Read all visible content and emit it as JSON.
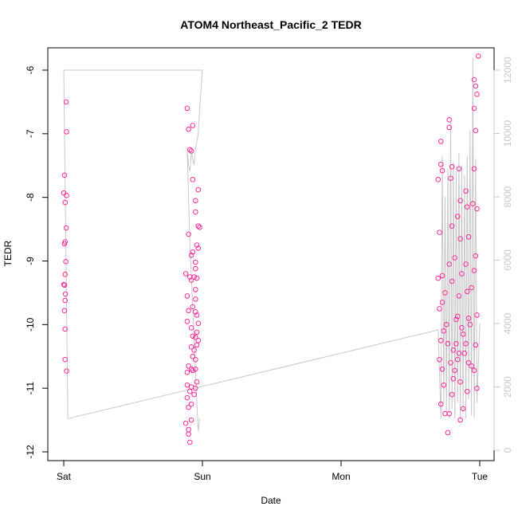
{
  "chart_data": {
    "type": "scatter",
    "title": "ATOM4 Northeast_Pacific_2 TEDR",
    "xlabel": "Date",
    "ylabel": "TEDR",
    "x_tick_labels": [
      "Sat",
      "Sun",
      "Mon",
      "Tue"
    ],
    "x_tick_values": [
      0,
      1,
      2,
      3
    ],
    "xlim": [
      0,
      3
    ],
    "ylim": [
      -12,
      -5.8
    ],
    "y_ticks": [
      -12,
      -11,
      -10,
      -9,
      -8,
      -7,
      -6
    ],
    "y2lim": [
      0,
      12000
    ],
    "y2_ticks": [
      0,
      2000,
      4000,
      6000,
      8000,
      10000,
      12000
    ],
    "grid": false,
    "colors": {
      "points": "#ff1493",
      "line": "#c8c8c8",
      "axis": "#000000",
      "right_axis": "#c8c8c8"
    },
    "series": [
      {
        "role": "points",
        "axis": "left",
        "points": [
          [
            0.018,
            -6.5
          ],
          [
            0.02,
            -6.97
          ],
          [
            0.005,
            -7.65
          ],
          [
            0.0,
            -7.93
          ],
          [
            0.02,
            -7.97
          ],
          [
            0.01,
            -8.08
          ],
          [
            0.018,
            -8.48
          ],
          [
            0.01,
            -8.7
          ],
          [
            0.005,
            -8.73
          ],
          [
            0.015,
            -9.01
          ],
          [
            0.01,
            -9.21
          ],
          [
            0.005,
            -9.38
          ],
          [
            0.0,
            -9.37
          ],
          [
            0.012,
            -9.52
          ],
          [
            0.01,
            -9.62
          ],
          [
            0.005,
            -9.78
          ],
          [
            0.01,
            -10.07
          ],
          [
            0.01,
            -10.55
          ],
          [
            0.02,
            -10.73
          ],
          [
            0.89,
            -6.6
          ],
          [
            0.93,
            -6.87
          ],
          [
            0.9,
            -6.93
          ],
          [
            0.91,
            -7.25
          ],
          [
            0.92,
            -7.27
          ],
          [
            0.97,
            -7.88
          ],
          [
            0.93,
            -7.72
          ],
          [
            0.95,
            -8.05
          ],
          [
            0.95,
            -8.23
          ],
          [
            0.97,
            -8.45
          ],
          [
            0.98,
            -8.47
          ],
          [
            0.9,
            -8.58
          ],
          [
            0.96,
            -8.75
          ],
          [
            0.97,
            -8.8
          ],
          [
            0.93,
            -8.86
          ],
          [
            0.92,
            -8.91
          ],
          [
            0.95,
            -9.02
          ],
          [
            0.95,
            -9.12
          ],
          [
            0.88,
            -9.2
          ],
          [
            0.91,
            -9.25
          ],
          [
            0.94,
            -9.25
          ],
          [
            0.96,
            -9.27
          ],
          [
            0.92,
            -9.3
          ],
          [
            0.95,
            -9.45
          ],
          [
            0.89,
            -9.55
          ],
          [
            0.95,
            -9.6
          ],
          [
            0.93,
            -9.72
          ],
          [
            0.9,
            -9.78
          ],
          [
            0.95,
            -9.8
          ],
          [
            0.96,
            -9.85
          ],
          [
            0.89,
            -9.95
          ],
          [
            0.97,
            -9.98
          ],
          [
            0.92,
            -10.05
          ],
          [
            0.96,
            -10.12
          ],
          [
            0.93,
            -10.18
          ],
          [
            0.95,
            -10.2
          ],
          [
            0.97,
            -10.25
          ],
          [
            0.96,
            -10.32
          ],
          [
            0.92,
            -10.35
          ],
          [
            0.94,
            -10.4
          ],
          [
            0.93,
            -10.5
          ],
          [
            0.95,
            -10.55
          ],
          [
            0.9,
            -10.65
          ],
          [
            0.92,
            -10.7
          ],
          [
            0.95,
            -10.7
          ],
          [
            0.89,
            -10.75
          ],
          [
            0.93,
            -10.72
          ],
          [
            0.96,
            -10.9
          ],
          [
            0.89,
            -10.95
          ],
          [
            0.92,
            -10.98
          ],
          [
            0.95,
            -11.0
          ],
          [
            0.91,
            -11.05
          ],
          [
            0.94,
            -11.1
          ],
          [
            0.89,
            -11.15
          ],
          [
            0.92,
            -11.25
          ],
          [
            0.9,
            -11.3
          ],
          [
            0.92,
            -11.5
          ],
          [
            0.88,
            -11.55
          ],
          [
            0.9,
            -11.65
          ],
          [
            0.9,
            -11.72
          ],
          [
            0.91,
            -11.85
          ],
          [
            2.7,
            -7.72
          ],
          [
            2.71,
            -8.55
          ],
          [
            2.72,
            -7.48
          ],
          [
            2.73,
            -7.58
          ],
          [
            2.72,
            -7.12
          ],
          [
            2.7,
            -9.27
          ],
          [
            2.73,
            -9.23
          ],
          [
            2.71,
            -9.75
          ],
          [
            2.73,
            -9.65
          ],
          [
            2.72,
            -10.25
          ],
          [
            2.71,
            -10.55
          ],
          [
            2.73,
            -10.7
          ],
          [
            2.74,
            -10.95
          ],
          [
            2.75,
            -11.4
          ],
          [
            2.72,
            -11.25
          ],
          [
            2.78,
            -6.78
          ],
          [
            2.78,
            -6.9
          ],
          [
            2.8,
            -7.52
          ],
          [
            2.79,
            -7.7
          ],
          [
            2.8,
            -8.45
          ],
          [
            2.82,
            -8.95
          ],
          [
            2.78,
            -9.05
          ],
          [
            2.8,
            -9.32
          ],
          [
            2.83,
            -9.92
          ],
          [
            2.81,
            -10.4
          ],
          [
            2.82,
            -10.72
          ],
          [
            2.8,
            -11.1
          ],
          [
            2.78,
            -11.4
          ],
          [
            2.77,
            -11.7
          ],
          [
            2.85,
            -7.55
          ],
          [
            2.86,
            -8.05
          ],
          [
            2.84,
            -8.3
          ],
          [
            2.86,
            -8.65
          ],
          [
            2.87,
            -9.2
          ],
          [
            2.85,
            -9.55
          ],
          [
            2.84,
            -9.87
          ],
          [
            2.87,
            -10.05
          ],
          [
            2.85,
            -10.45
          ],
          [
            2.86,
            -10.9
          ],
          [
            2.88,
            -11.32
          ],
          [
            2.86,
            -11.5
          ],
          [
            2.9,
            -7.9
          ],
          [
            2.91,
            -8.15
          ],
          [
            2.92,
            -8.62
          ],
          [
            2.9,
            -9.05
          ],
          [
            2.91,
            -9.48
          ],
          [
            2.92,
            -9.9
          ],
          [
            2.9,
            -10.3
          ],
          [
            2.92,
            -10.6
          ],
          [
            2.91,
            -11.05
          ],
          [
            2.94,
            -9.42
          ],
          [
            2.96,
            -6.15
          ],
          [
            2.97,
            -6.25
          ],
          [
            2.96,
            -6.6
          ],
          [
            2.97,
            -6.95
          ],
          [
            2.96,
            -7.55
          ],
          [
            2.98,
            -8.18
          ],
          [
            2.97,
            -8.92
          ],
          [
            2.96,
            -9.15
          ],
          [
            2.98,
            -9.85
          ],
          [
            2.97,
            -10.32
          ],
          [
            2.96,
            -10.72
          ],
          [
            2.98,
            -11.0
          ],
          [
            2.99,
            -5.78
          ],
          [
            2.98,
            -6.38
          ],
          [
            2.95,
            -8.1
          ],
          [
            2.75,
            -9.5
          ],
          [
            2.76,
            -10.0
          ],
          [
            2.77,
            -10.3
          ],
          [
            2.74,
            -10.1
          ],
          [
            2.79,
            -10.6
          ],
          [
            2.81,
            -10.85
          ],
          [
            2.83,
            -10.3
          ],
          [
            2.84,
            -10.55
          ],
          [
            2.88,
            -10.15
          ],
          [
            2.89,
            -10.45
          ],
          [
            2.93,
            -10.0
          ],
          [
            2.94,
            -10.65
          ]
        ]
      },
      {
        "role": "line",
        "axis": "right",
        "points": [
          [
            0.0,
            12000
          ],
          [
            0.03,
            1000
          ],
          [
            2.7,
            3800
          ],
          [
            2.72,
            1000
          ],
          [
            2.73,
            9300
          ],
          [
            2.74,
            1500
          ],
          [
            2.75,
            8000
          ],
          [
            2.76,
            1200
          ],
          [
            2.77,
            8900
          ],
          [
            2.78,
            1000
          ],
          [
            2.79,
            10400
          ],
          [
            2.8,
            1300
          ],
          [
            2.81,
            9100
          ],
          [
            2.82,
            1000
          ],
          [
            2.83,
            8800
          ],
          [
            2.84,
            1500
          ],
          [
            2.85,
            9400
          ],
          [
            2.86,
            1000
          ],
          [
            2.87,
            9000
          ],
          [
            2.88,
            1200
          ],
          [
            2.89,
            8700
          ],
          [
            2.9,
            1000
          ],
          [
            2.91,
            9300
          ],
          [
            2.92,
            1600
          ],
          [
            2.93,
            10100
          ],
          [
            2.94,
            1100
          ],
          [
            2.95,
            12400
          ],
          [
            2.96,
            1000
          ],
          [
            2.97,
            9200
          ],
          [
            2.98,
            1500
          ],
          [
            3.0,
            4000
          ]
        ]
      },
      {
        "role": "line",
        "axis": "right",
        "points": [
          [
            0.0,
            12000
          ],
          [
            1.0,
            12000
          ],
          [
            0.98,
            10800
          ],
          [
            0.97,
            10000
          ],
          [
            0.95,
            9500
          ],
          [
            0.94,
            9000
          ],
          [
            0.92,
            9400
          ],
          [
            0.91,
            8800
          ],
          [
            0.9,
            9000
          ],
          [
            0.89,
            9500
          ],
          [
            0.9,
            8000
          ],
          [
            0.91,
            6500
          ],
          [
            0.92,
            5500
          ],
          [
            0.93,
            4500
          ],
          [
            0.94,
            3500
          ],
          [
            0.95,
            2500
          ],
          [
            0.96,
            1500
          ],
          [
            0.97,
            600
          ],
          [
            0.98,
            1000
          ]
        ]
      }
    ]
  }
}
